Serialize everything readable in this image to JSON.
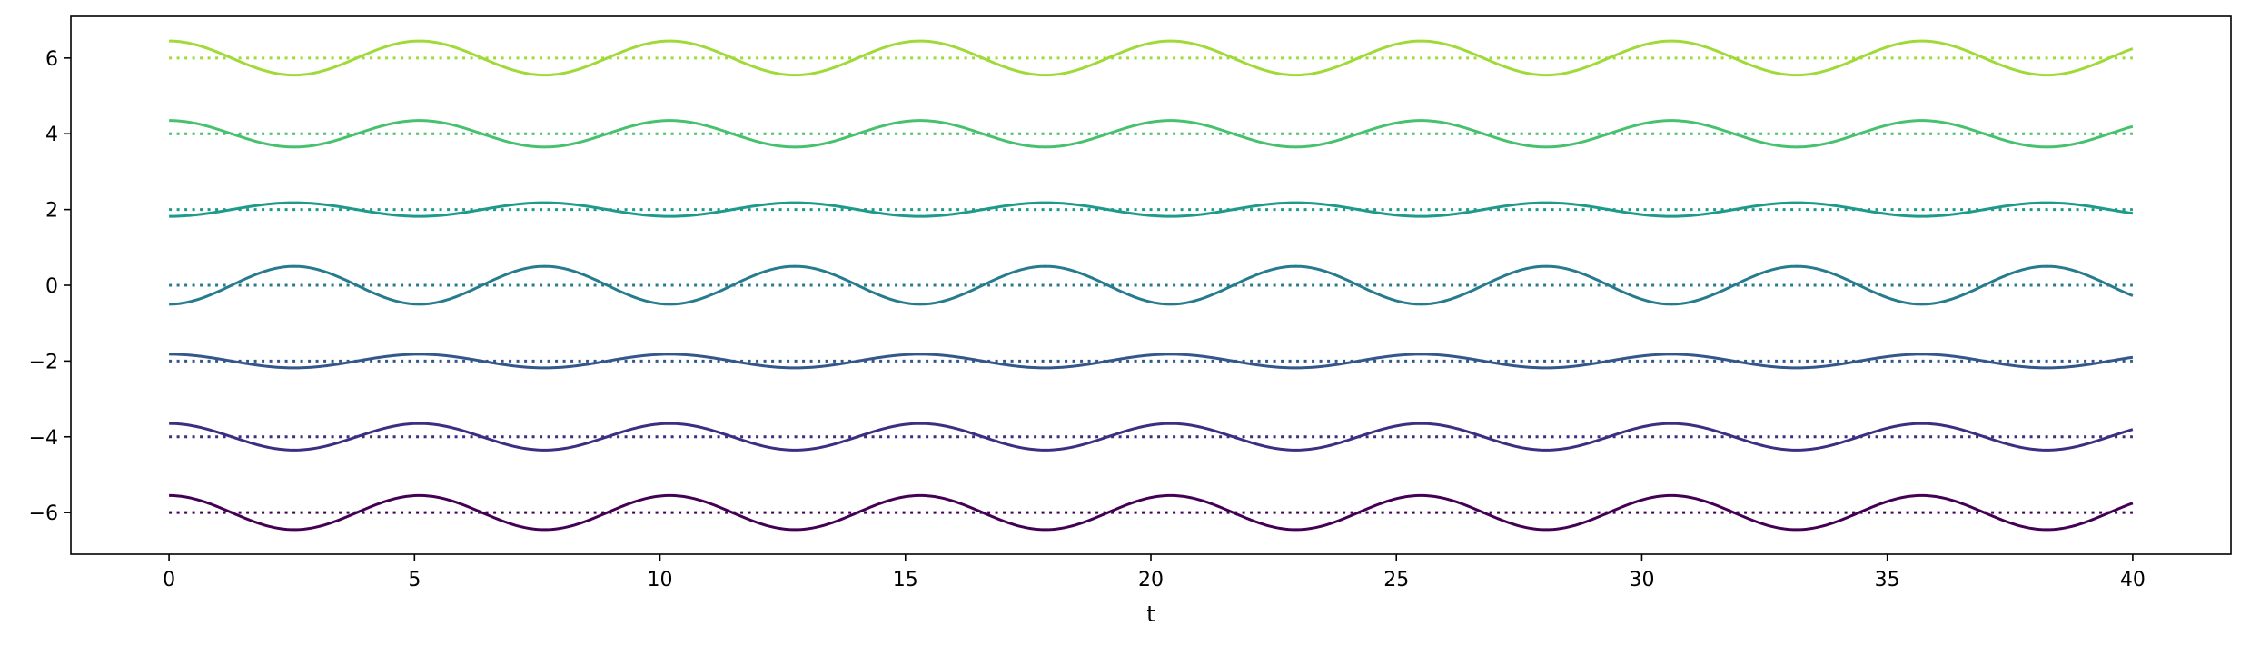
{
  "chart_data": {
    "type": "line",
    "title": "",
    "xlabel": "t",
    "ylabel": "",
    "xlim": [
      -2,
      42
    ],
    "ylim": [
      -7.1,
      7.1
    ],
    "xticks": [
      0,
      5,
      10,
      15,
      20,
      25,
      30,
      35,
      40
    ],
    "xtick_labels": [
      "0",
      "5",
      "10",
      "15",
      "20",
      "25",
      "30",
      "35",
      "40"
    ],
    "yticks": [
      -6,
      -4,
      -2,
      0,
      2,
      4,
      6
    ],
    "ytick_labels": [
      "−6",
      "−4",
      "−2",
      "0",
      "2",
      "4",
      "6"
    ],
    "grid": false,
    "legend": "none",
    "t_range": [
      0,
      40
    ],
    "period": 5.1,
    "series": [
      {
        "baseline": -6,
        "amplitude": 0.45,
        "phase": "cos",
        "color": "#440154"
      },
      {
        "baseline": -4,
        "amplitude": 0.35,
        "phase": "cos",
        "color": "#3b2f82"
      },
      {
        "baseline": -2,
        "amplitude": 0.18,
        "phase": "cos",
        "color": "#33568b"
      },
      {
        "baseline": 0,
        "amplitude": 0.5,
        "phase": "-cos",
        "color": "#277b8e"
      },
      {
        "baseline": 2,
        "amplitude": 0.18,
        "phase": "-cos",
        "color": "#1f9a8a"
      },
      {
        "baseline": 4,
        "amplitude": 0.35,
        "phase": "cos",
        "color": "#48c16e"
      },
      {
        "baseline": 6,
        "amplitude": 0.45,
        "phase": "cos",
        "color": "#a0da39"
      }
    ]
  }
}
